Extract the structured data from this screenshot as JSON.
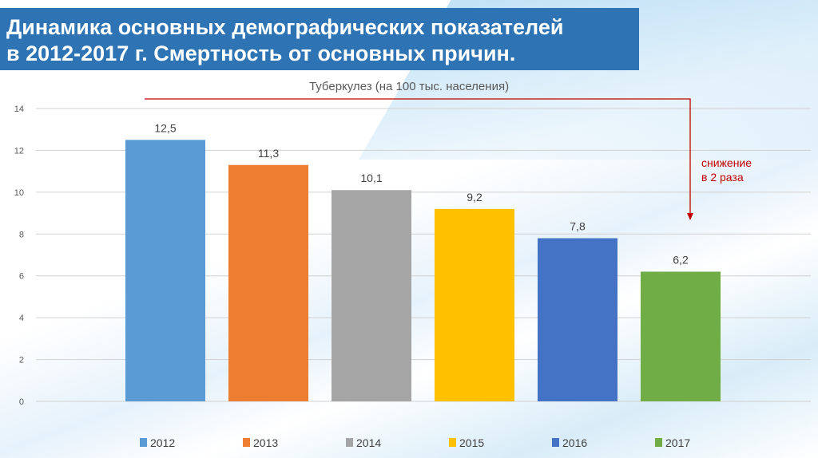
{
  "header": {
    "title_line1": "Динамика основных демографических показателей",
    "title_line2": "в 2012-2017 г. Смертность от основных причин."
  },
  "annotation": {
    "line1": "снижение",
    "line2": "в 2 раза",
    "color": "#c00000"
  },
  "chart_data": {
    "type": "bar",
    "title": "Туберкулез (на 100 тыс. населения)",
    "categories": [
      "2012",
      "2013",
      "2014",
      "2015",
      "2016",
      "2017"
    ],
    "values": [
      12.5,
      11.3,
      10.1,
      9.2,
      7.8,
      6.2
    ],
    "data_labels": [
      "12,5",
      "11,3",
      "10,1",
      "9,2",
      "7,8",
      "6,2"
    ],
    "colors": [
      "#5b9bd5",
      "#ed7d31",
      "#a5a5a5",
      "#ffc000",
      "#4472c4",
      "#70ad47"
    ],
    "ylim": [
      0,
      14
    ],
    "yticks": [
      "0",
      "2",
      "4",
      "6",
      "8",
      "10",
      "12",
      "14"
    ],
    "grid": true,
    "legend": "bottom",
    "xlabel": "",
    "ylabel": ""
  }
}
